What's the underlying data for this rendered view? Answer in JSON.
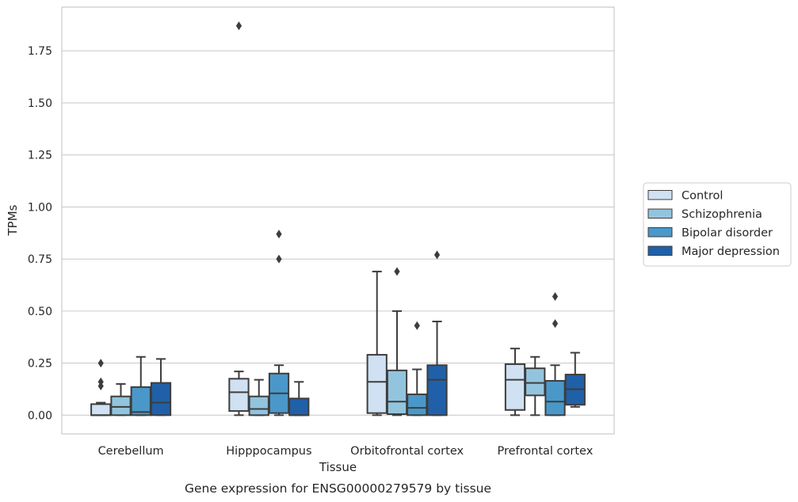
{
  "chart_data": {
    "type": "box",
    "title": "Gene expression for ENSG00000279579 by tissue",
    "xlabel": "Tissue",
    "ylabel": "TPMs",
    "ylim": [
      -0.09,
      1.96
    ],
    "yticks": [
      0.0,
      0.25,
      0.5,
      0.75,
      1.0,
      1.25,
      1.5,
      1.75
    ],
    "ytick_labels": [
      "0.00",
      "0.25",
      "0.50",
      "0.75",
      "1.00",
      "1.25",
      "1.50",
      "1.75"
    ],
    "grid": "y",
    "legend_position": "right",
    "categories": [
      "Cerebellum",
      "Hipppocampus",
      "Orbitofrontal cortex",
      "Prefrontal cortex"
    ],
    "series": [
      {
        "name": "Control",
        "color": "#cfe1f2",
        "boxes": [
          {
            "whislo": 0.0,
            "q1": 0.0,
            "med": 0.0,
            "q3": 0.053,
            "whishi": 0.06,
            "fliers": [
              0.14,
              0.16,
              0.25
            ]
          },
          {
            "whislo": 0.0,
            "q1": 0.02,
            "med": 0.11,
            "q3": 0.175,
            "whishi": 0.21,
            "fliers": [
              1.87
            ]
          },
          {
            "whislo": 0.0,
            "q1": 0.01,
            "med": 0.16,
            "q3": 0.29,
            "whishi": 0.69,
            "fliers": []
          },
          {
            "whislo": 0.0,
            "q1": 0.025,
            "med": 0.17,
            "q3": 0.245,
            "whishi": 0.32,
            "fliers": []
          }
        ]
      },
      {
        "name": "Schizophrenia",
        "color": "#93c4de",
        "boxes": [
          {
            "whislo": 0.0,
            "q1": 0.0,
            "med": 0.04,
            "q3": 0.09,
            "whishi": 0.15,
            "fliers": []
          },
          {
            "whislo": 0.0,
            "q1": 0.0,
            "med": 0.03,
            "q3": 0.09,
            "whishi": 0.17,
            "fliers": []
          },
          {
            "whislo": 0.0,
            "q1": 0.005,
            "med": 0.065,
            "q3": 0.215,
            "whishi": 0.5,
            "fliers": [
              0.69
            ]
          },
          {
            "whislo": 0.0,
            "q1": 0.095,
            "med": 0.155,
            "q3": 0.225,
            "whishi": 0.28,
            "fliers": []
          }
        ]
      },
      {
        "name": "Bipolar disorder",
        "color": "#4a98c9",
        "boxes": [
          {
            "whislo": 0.0,
            "q1": 0.0,
            "med": 0.015,
            "q3": 0.135,
            "whishi": 0.28,
            "fliers": []
          },
          {
            "whislo": 0.0,
            "q1": 0.01,
            "med": 0.105,
            "q3": 0.2,
            "whishi": 0.24,
            "fliers": [
              0.75,
              0.87
            ]
          },
          {
            "whislo": 0.0,
            "q1": 0.0,
            "med": 0.035,
            "q3": 0.1,
            "whishi": 0.22,
            "fliers": [
              0.43
            ]
          },
          {
            "whislo": 0.0,
            "q1": 0.0,
            "med": 0.065,
            "q3": 0.165,
            "whishi": 0.24,
            "fliers": [
              0.44,
              0.57
            ]
          }
        ]
      },
      {
        "name": "Major depression",
        "color": "#2060a8",
        "boxes": [
          {
            "whislo": 0.0,
            "q1": 0.0,
            "med": 0.06,
            "q3": 0.155,
            "whishi": 0.27,
            "fliers": []
          },
          {
            "whislo": 0.0,
            "q1": 0.0,
            "med": 0.0,
            "q3": 0.08,
            "whishi": 0.16,
            "fliers": []
          },
          {
            "whislo": 0.0,
            "q1": 0.0,
            "med": 0.17,
            "q3": 0.24,
            "whishi": 0.45,
            "fliers": [
              0.77
            ]
          },
          {
            "whislo": 0.04,
            "q1": 0.05,
            "med": 0.125,
            "q3": 0.195,
            "whishi": 0.3,
            "fliers": []
          }
        ]
      }
    ]
  }
}
